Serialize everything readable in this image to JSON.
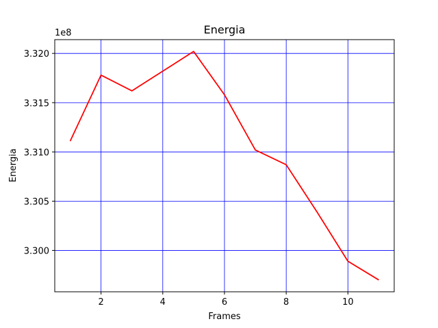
{
  "chart_data": {
    "type": "line",
    "title": "Energia",
    "xlabel": "Frames",
    "ylabel": "Energia",
    "y_offset_text": "1e8",
    "xlim": [
      0.5,
      11.5
    ],
    "ylim": [
      3.2958,
      3.3214
    ],
    "x_ticks": [
      2,
      4,
      6,
      8,
      10
    ],
    "y_ticks": [
      3.3,
      3.305,
      3.31,
      3.315,
      3.32
    ],
    "grid": true,
    "grid_color": "#0000ff",
    "series": [
      {
        "color": "#ff0000",
        "x": [
          1,
          2,
          3,
          4,
          5,
          6,
          7,
          8,
          9,
          10,
          11
        ],
        "y": [
          3.3111,
          3.3178,
          3.3162,
          3.3182,
          3.3202,
          3.3158,
          3.3102,
          3.3087,
          3.3039,
          3.2989,
          3.297
        ]
      }
    ]
  }
}
